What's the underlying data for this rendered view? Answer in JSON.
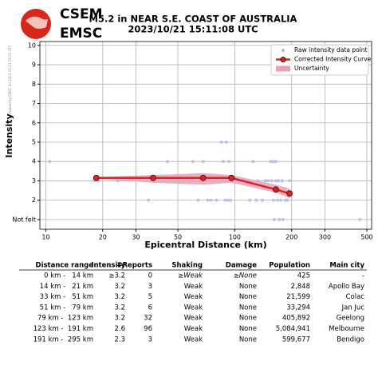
{
  "logo": {
    "line1": "CSEM",
    "line2": "EMSC"
  },
  "credit": "created by EMSC on 2023-10-21 15:31 UTC",
  "chart_data": {
    "type": "scatter",
    "title": "M5.2 in NEAR S.E. COAST OF AUSTRALIA",
    "subtitle": "2023/10/21 15:11:08 UTC",
    "x_label": "Epicentral Distance (km)",
    "y_label": "Intensity",
    "xlog": true,
    "xlim": [
      9.3,
      530
    ],
    "ylim": [
      0.5,
      10.2
    ],
    "xticks": [
      10,
      20,
      30,
      50,
      100,
      200,
      300,
      500
    ],
    "yticks": [
      {
        "value": 1,
        "label": "Not felt"
      },
      2,
      3,
      4,
      5,
      6,
      7,
      8,
      9,
      10
    ],
    "grid": true,
    "legend": "upper right",
    "series": [
      {
        "name": "Raw intensity data point",
        "kind": "scatter",
        "color": "#aab8e6",
        "x": [
          10.5,
          18,
          19,
          24,
          35,
          44,
          60,
          64,
          68,
          72,
          75,
          80,
          85,
          87,
          89,
          90,
          92,
          93,
          95,
          100,
          105,
          112,
          120,
          125,
          130,
          132,
          140,
          145,
          150,
          155,
          157,
          160,
          160,
          162,
          165,
          165,
          168,
          170,
          172,
          175,
          178,
          180,
          185,
          190,
          195,
          460
        ],
        "values": [
          4,
          3,
          3,
          3,
          2,
          4,
          4,
          2,
          4,
          2,
          2,
          2,
          5,
          4,
          2,
          5,
          2,
          4,
          2,
          3,
          3,
          3,
          2,
          4,
          2,
          3,
          2,
          3,
          3,
          4,
          3,
          2,
          4,
          1,
          3,
          4,
          2,
          3,
          1,
          2,
          3,
          1,
          2,
          2,
          3,
          1
        ]
      },
      {
        "name": "Corrected Intensity Curve",
        "kind": "line",
        "color": "#d62728",
        "x": [
          18.5,
          37,
          68,
          96,
          165,
          195
        ],
        "values": [
          3.15,
          3.15,
          3.15,
          3.15,
          2.55,
          2.35
        ]
      },
      {
        "name": "Uncertainty",
        "kind": "band",
        "color": "#e8a0b8",
        "x": [
          18.5,
          37,
          68,
          96,
          165,
          195
        ],
        "lower": [
          3.1,
          2.9,
          2.8,
          2.9,
          2.4,
          2.1
        ],
        "upper": [
          3.2,
          3.3,
          3.4,
          3.3,
          2.8,
          2.6
        ]
      }
    ]
  },
  "table": {
    "header": [
      "Distance range",
      "Intensity",
      "#Reports",
      "Shaking",
      "Damage",
      "Population",
      "Main city"
    ],
    "rows": [
      [
        "0 km -   14 km",
        "≥3.2",
        "0",
        "≥Weak",
        "≥None",
        "425",
        "-"
      ],
      [
        "14 km -   21 km",
        "3.2",
        "3",
        "Weak",
        "None",
        "2,848",
        "Apollo Bay"
      ],
      [
        "33 km -   51 km",
        "3.2",
        "5",
        "Weak",
        "None",
        "21,599",
        "Colac"
      ],
      [
        "51 km -   79 km",
        "3.2",
        "6",
        "Weak",
        "None",
        "33,294",
        "Jan Juc"
      ],
      [
        "79 km -  123 km",
        "3.2",
        "32",
        "Weak",
        "None",
        "405,892",
        "Geelong"
      ],
      [
        "123 km -  191 km",
        "2.6",
        "96",
        "Weak",
        "None",
        "5,084,941",
        "Melbourne"
      ],
      [
        "191 km -  295 km",
        "2.3",
        "3",
        "Weak",
        "None",
        "599,677",
        "Bendigo"
      ]
    ]
  }
}
